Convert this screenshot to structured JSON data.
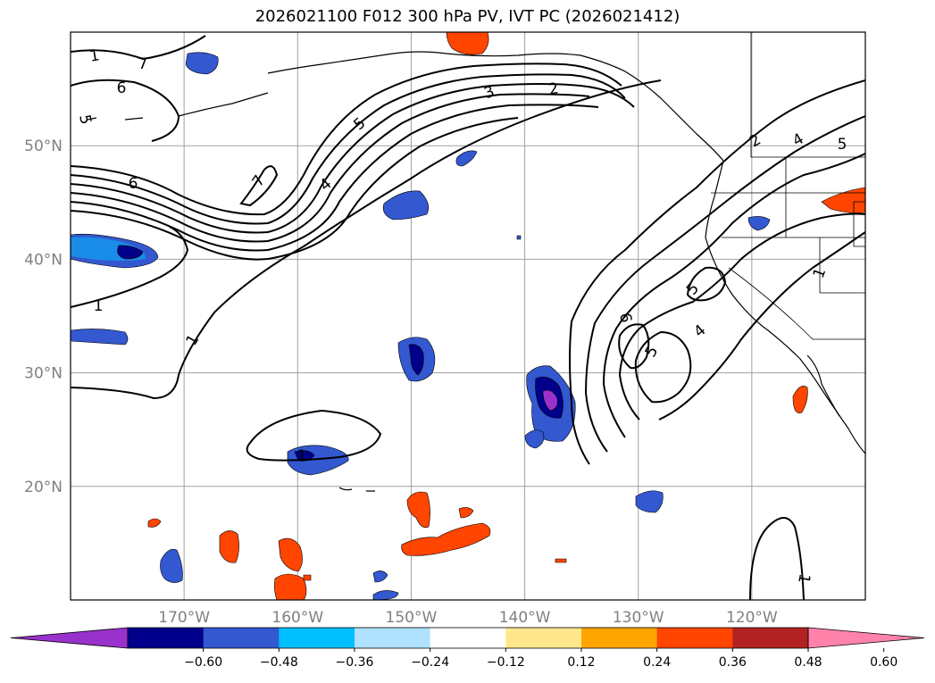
{
  "title": "2026021100 F012 300 hPa PV, IVT PC (2026021412)",
  "map": {
    "lon_range": [
      -180,
      -110
    ],
    "lat_range": [
      10,
      60
    ],
    "lon_ticks": [
      {
        "value": -170,
        "label": "170°W"
      },
      {
        "value": -160,
        "label": "160°W"
      },
      {
        "value": -150,
        "label": "150°W"
      },
      {
        "value": -140,
        "label": "140°W"
      },
      {
        "value": -130,
        "label": "130°W"
      },
      {
        "value": -120,
        "label": "120°W"
      }
    ],
    "lat_ticks": [
      {
        "value": 20,
        "label": "20°N"
      },
      {
        "value": 30,
        "label": "30°N"
      },
      {
        "value": 40,
        "label": "40°N"
      },
      {
        "value": 50,
        "label": "50°N"
      }
    ],
    "grid": true,
    "contour_labels": [
      "1",
      "7",
      "6",
      "5",
      "3",
      "2",
      "5",
      "4",
      "7",
      "6",
      "1",
      "1",
      "2",
      "4",
      "5",
      "1",
      "5",
      "6",
      "5",
      "4",
      "1",
      "1"
    ]
  },
  "colorbar": {
    "ticks": [
      "−0.60",
      "−0.48",
      "−0.36",
      "−0.24",
      "−0.12",
      "0.12",
      "0.24",
      "0.36",
      "0.48",
      "0.60"
    ],
    "colors": [
      "#9932cc",
      "#00008b",
      "#3358d0",
      "#00bfff",
      "#b0e2ff",
      "#ffffff",
      "#ffe88c",
      "#ffa500",
      "#ff4500",
      "#b22222",
      "#ff82ab"
    ]
  }
}
